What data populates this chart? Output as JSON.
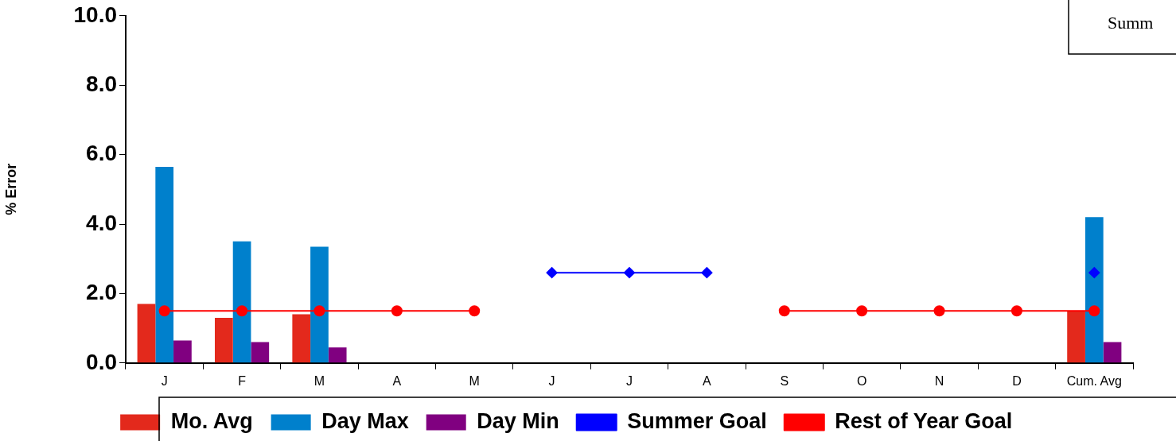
{
  "chart_data": {
    "type": "bar",
    "ylabel": "% Error",
    "categories": [
      "J",
      "F",
      "M",
      "A",
      "M",
      "J",
      "J",
      "A",
      "S",
      "O",
      "N",
      "D",
      "Cum. Avg"
    ],
    "series": [
      {
        "name": "Mo. Avg",
        "color": "#e3291c",
        "values": [
          1.7,
          1.3,
          1.4,
          null,
          null,
          null,
          null,
          null,
          null,
          null,
          null,
          null,
          1.5
        ]
      },
      {
        "name": "Day Max",
        "color": "#0080cc",
        "values": [
          5.65,
          3.5,
          3.35,
          null,
          null,
          null,
          null,
          null,
          null,
          null,
          null,
          null,
          4.2
        ]
      },
      {
        "name": "Day Min",
        "color": "#800080",
        "values": [
          0.65,
          0.6,
          0.45,
          null,
          null,
          null,
          null,
          null,
          null,
          null,
          null,
          null,
          0.6
        ]
      },
      {
        "name": "Summer Goal",
        "type": "line",
        "marker": "diamond",
        "color": "#0000ff",
        "values": [
          null,
          null,
          null,
          null,
          null,
          2.6,
          2.6,
          2.6,
          null,
          null,
          null,
          null,
          2.6
        ]
      },
      {
        "name": "Rest of Year Goal",
        "type": "line",
        "marker": "circle",
        "color": "#ff0000",
        "values": [
          1.5,
          1.5,
          1.5,
          1.5,
          1.5,
          null,
          null,
          null,
          1.5,
          1.5,
          1.5,
          1.5,
          1.5
        ]
      }
    ],
    "ylim": [
      0,
      10
    ],
    "yticks": [
      {
        "value": 0,
        "label": "0.0"
      },
      {
        "value": 2,
        "label": "2.0"
      },
      {
        "value": 4,
        "label": "4.0"
      },
      {
        "value": 6,
        "label": "6.0"
      },
      {
        "value": 8,
        "label": "8.0"
      },
      {
        "value": 10,
        "label": "10.0"
      }
    ],
    "grid": false,
    "legend": "bottom",
    "annotations": [
      "Summ"
    ]
  }
}
